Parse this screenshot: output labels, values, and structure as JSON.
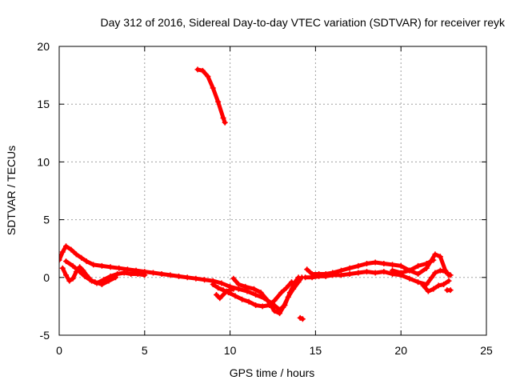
{
  "chart_data": {
    "type": "scatter",
    "title": "Day 312 of 2016, Sidereal Day-to-day VTEC variation (SDTVAR) for receiver reyk",
    "xlabel": "GPS time / hours",
    "ylabel": "SDTVAR / TECUs",
    "xlim": [
      0,
      25
    ],
    "ylim": [
      -5,
      20
    ],
    "xticks": [
      0,
      5,
      10,
      15,
      20,
      25
    ],
    "yticks": [
      -5,
      0,
      5,
      10,
      15,
      20
    ],
    "grid": true,
    "marker": "+",
    "series": [
      {
        "name": "SDTVAR",
        "color": "#ff0000",
        "segments": [
          [
            [
              0.0,
              1.5
            ],
            [
              0.2,
              2.2
            ],
            [
              0.4,
              2.7
            ],
            [
              0.7,
              2.4
            ],
            [
              1.0,
              2.0
            ],
            [
              1.3,
              1.7
            ],
            [
              1.6,
              1.4
            ],
            [
              2.0,
              1.1
            ],
            [
              2.5,
              1.0
            ],
            [
              3.0,
              0.9
            ],
            [
              3.5,
              0.8
            ],
            [
              4.0,
              0.7
            ],
            [
              4.5,
              0.6
            ],
            [
              5.0,
              0.5
            ],
            [
              5.5,
              0.4
            ],
            [
              6.0,
              0.3
            ],
            [
              6.5,
              0.2
            ],
            [
              7.0,
              0.1
            ],
            [
              7.5,
              0.0
            ],
            [
              8.0,
              -0.1
            ],
            [
              8.5,
              -0.2
            ],
            [
              9.0,
              -0.3
            ],
            [
              9.5,
              -0.5
            ],
            [
              10.0,
              -0.8
            ],
            [
              10.5,
              -1.0
            ],
            [
              11.0,
              -1.2
            ],
            [
              11.5,
              -1.5
            ],
            [
              12.0,
              -1.8
            ],
            [
              12.5,
              -2.3
            ],
            [
              12.9,
              -2.8
            ],
            [
              13.2,
              -2.4
            ],
            [
              13.5,
              -1.3
            ],
            [
              13.8,
              -0.4
            ],
            [
              14.0,
              0.0
            ]
          ],
          [
            [
              0.2,
              0.8
            ],
            [
              0.4,
              0.2
            ],
            [
              0.6,
              -0.3
            ],
            [
              0.8,
              -0.1
            ],
            [
              1.0,
              0.5
            ],
            [
              1.2,
              0.9
            ],
            [
              1.4,
              0.6
            ],
            [
              1.6,
              0.2
            ],
            [
              1.9,
              -0.3
            ],
            [
              2.2,
              -0.5
            ],
            [
              2.6,
              -0.2
            ],
            [
              3.0,
              0.1
            ],
            [
              3.4,
              0.3
            ],
            [
              3.8,
              0.4
            ],
            [
              4.2,
              0.3
            ],
            [
              4.6,
              0.3
            ],
            [
              5.0,
              0.2
            ]
          ],
          [
            [
              0.4,
              1.4
            ],
            [
              0.8,
              1.0
            ],
            [
              1.2,
              0.5
            ],
            [
              1.5,
              0.1
            ],
            [
              1.8,
              -0.2
            ],
            [
              2.1,
              -0.4
            ],
            [
              2.5,
              -0.6
            ],
            [
              2.9,
              -0.3
            ],
            [
              3.3,
              0.0
            ]
          ],
          [
            [
              9.0,
              -0.6
            ],
            [
              9.3,
              -0.9
            ],
            [
              9.6,
              -1.1
            ],
            [
              9.9,
              -1.3
            ],
            [
              10.3,
              -1.6
            ],
            [
              10.7,
              -1.9
            ],
            [
              11.1,
              -2.1
            ],
            [
              11.5,
              -2.4
            ],
            [
              11.9,
              -2.5
            ],
            [
              12.3,
              -2.4
            ],
            [
              12.6,
              -2.0
            ],
            [
              13.0,
              -1.3
            ],
            [
              13.3,
              -0.9
            ],
            [
              13.6,
              -0.4
            ]
          ],
          [
            [
              9.2,
              -1.5
            ],
            [
              9.4,
              -1.8
            ],
            [
              9.8,
              -1.2
            ],
            [
              10.2,
              -1.0
            ]
          ],
          [
            [
              10.2,
              -0.1
            ],
            [
              10.5,
              -0.6
            ],
            [
              10.9,
              -0.8
            ],
            [
              11.4,
              -1.0
            ],
            [
              11.8,
              -1.3
            ],
            [
              12.2,
              -2.0
            ],
            [
              12.6,
              -2.9
            ],
            [
              12.9,
              -3.1
            ],
            [
              13.1,
              -2.6
            ],
            [
              13.4,
              -1.7
            ],
            [
              13.7,
              -1.0
            ],
            [
              14.0,
              -0.4
            ],
            [
              14.2,
              0.0
            ]
          ],
          [
            [
              8.1,
              18.0
            ],
            [
              8.4,
              17.9
            ],
            [
              8.7,
              17.4
            ],
            [
              9.0,
              16.4
            ],
            [
              9.3,
              15.2
            ],
            [
              9.6,
              13.8
            ],
            [
              9.7,
              13.4
            ]
          ],
          [
            [
              14.1,
              -3.5
            ],
            [
              14.25,
              -3.6
            ]
          ],
          [
            [
              14.5,
              0.7
            ],
            [
              14.8,
              0.3
            ],
            [
              15.2,
              0.3
            ],
            [
              15.6,
              0.3
            ],
            [
              16.0,
              0.4
            ],
            [
              16.5,
              0.6
            ],
            [
              17.0,
              0.8
            ],
            [
              17.5,
              1.0
            ],
            [
              18.0,
              1.2
            ],
            [
              18.5,
              1.3
            ],
            [
              19.0,
              1.2
            ],
            [
              19.5,
              1.1
            ],
            [
              20.0,
              1.0
            ],
            [
              20.5,
              0.6
            ],
            [
              21.0,
              0.3
            ],
            [
              21.5,
              0.8
            ],
            [
              22.0,
              2.0
            ],
            [
              22.3,
              1.8
            ],
            [
              22.6,
              0.6
            ],
            [
              22.8,
              0.2
            ]
          ],
          [
            [
              14.4,
              0.0
            ],
            [
              14.8,
              0.0
            ],
            [
              15.2,
              0.1
            ],
            [
              15.6,
              0.1
            ],
            [
              16.0,
              0.2
            ],
            [
              16.5,
              0.2
            ],
            [
              17.0,
              0.3
            ],
            [
              17.5,
              0.4
            ],
            [
              18.0,
              0.5
            ],
            [
              18.5,
              0.4
            ],
            [
              19.0,
              0.5
            ],
            [
              19.5,
              0.3
            ],
            [
              20.0,
              0.2
            ],
            [
              20.5,
              -0.1
            ],
            [
              21.0,
              -0.4
            ],
            [
              21.5,
              -0.6
            ],
            [
              21.8,
              0.0
            ],
            [
              22.0,
              0.4
            ],
            [
              22.3,
              0.6
            ],
            [
              22.6,
              0.5
            ],
            [
              22.9,
              0.2
            ]
          ],
          [
            [
              19.5,
              0.6
            ],
            [
              20.0,
              0.4
            ],
            [
              20.5,
              0.6
            ],
            [
              21.0,
              1.0
            ],
            [
              21.5,
              1.2
            ],
            [
              21.9,
              1.5
            ]
          ],
          [
            [
              21.3,
              -0.7
            ],
            [
              21.6,
              -1.2
            ],
            [
              21.9,
              -1.0
            ],
            [
              22.2,
              -0.7
            ],
            [
              22.5,
              -0.6
            ],
            [
              22.8,
              -0.3
            ]
          ],
          [
            [
              22.7,
              -1.1
            ],
            [
              22.9,
              -1.1
            ]
          ]
        ]
      }
    ]
  }
}
